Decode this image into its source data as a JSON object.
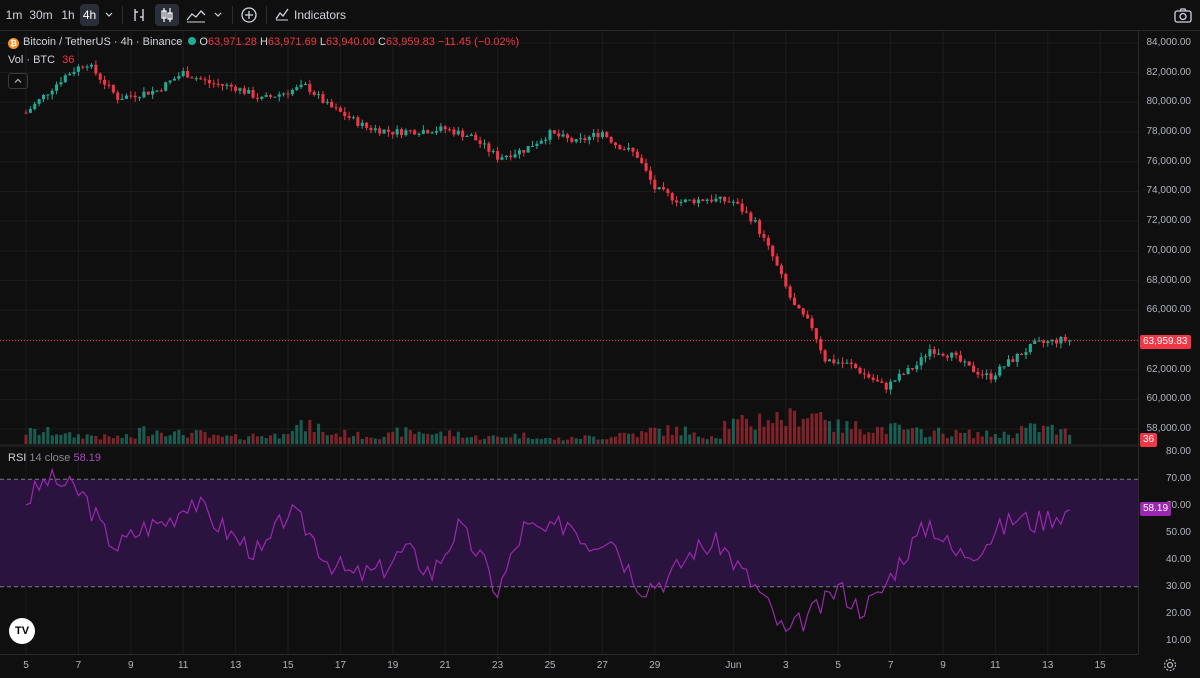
{
  "toolbar": {
    "intervals": [
      "1m",
      "30m",
      "1h",
      "4h"
    ],
    "active_interval": "4h",
    "indicators_label": "Indicators"
  },
  "legend": {
    "symbol": "Bitcoin / TetherUS · 4h · Binance",
    "ohlc_open_label": "O",
    "ohlc_open": "63,971.28",
    "ohlc_high_label": "H",
    "ohlc_high": "63,971.69",
    "ohlc_low_label": "L",
    "ohlc_low": "63,940.00",
    "ohlc_close_label": "C",
    "ohlc_close": "63,959.83",
    "change": "−11.45 (−0.02%)",
    "vol_label": "Vol · BTC",
    "vol_value": "36"
  },
  "rsi_legend": {
    "label": "RSI",
    "params": "14 close",
    "value": "58.19"
  },
  "colors": {
    "up": "#22ab94",
    "down": "#f23645",
    "rsi": "#9c27b0",
    "rsi_band": "#2b1340",
    "background": "#0f0f0f"
  },
  "chart_data": {
    "type": "candlestick",
    "price_axis_ticks": [
      "84,000.00",
      "82,000.00",
      "80,000.00",
      "78,000.00",
      "76,000.00",
      "74,000.00",
      "72,000.00",
      "70,000.00",
      "68,000.00",
      "66,000.00",
      "64,000.00",
      "62,000.00",
      "60,000.00",
      "58,000.00"
    ],
    "price_range": [
      57000,
      84800
    ],
    "last_price": "63,959.83",
    "last_volume": "36",
    "rsi_axis_ticks": [
      "80.00",
      "70.00",
      "60.00",
      "50.00",
      "40.00",
      "30.00",
      "20.00",
      "10.00"
    ],
    "rsi_range": [
      5,
      82
    ],
    "rsi_bands": [
      30,
      70
    ],
    "rsi_last": "58.19",
    "time_axis_labels": [
      "5",
      "7",
      "9",
      "11",
      "13",
      "15",
      "17",
      "19",
      "21",
      "23",
      "25",
      "27",
      "29",
      "Jun",
      "3",
      "5",
      "7",
      "9",
      "11",
      "13",
      "15"
    ],
    "time_axis_days": [
      0,
      2,
      4,
      6,
      8,
      10,
      12,
      14,
      16,
      18,
      20,
      22,
      24,
      27,
      29,
      31,
      33,
      35,
      37,
      39,
      41
    ],
    "price_path": [
      [
        0,
        79300
      ],
      [
        1.5,
        81800
      ],
      [
        2.3,
        82700
      ],
      [
        3.5,
        80300
      ],
      [
        5,
        80800
      ],
      [
        6,
        82000
      ],
      [
        7,
        81300
      ],
      [
        8,
        81000
      ],
      [
        9,
        80200
      ],
      [
        10.7,
        81100
      ],
      [
        11.5,
        79800
      ],
      [
        13,
        78300
      ],
      [
        14,
        78000
      ],
      [
        16,
        78200
      ],
      [
        17,
        77700
      ],
      [
        18,
        76300
      ],
      [
        19,
        76800
      ],
      [
        20,
        77900
      ],
      [
        21,
        77300
      ],
      [
        22,
        78000
      ],
      [
        22.5,
        77200
      ],
      [
        23.3,
        76500
      ],
      [
        24,
        74200
      ],
      [
        25,
        73300
      ],
      [
        26,
        73500
      ],
      [
        27,
        73300
      ],
      [
        27.8,
        72000
      ],
      [
        28.5,
        69600
      ],
      [
        29.3,
        66300
      ],
      [
        30,
        64900
      ],
      [
        30.5,
        62700
      ],
      [
        31.5,
        62300
      ],
      [
        32,
        61700
      ],
      [
        32.8,
        60800
      ],
      [
        33.3,
        61500
      ],
      [
        34,
        62300
      ],
      [
        34.5,
        63400
      ],
      [
        35.3,
        63000
      ],
      [
        36,
        62100
      ],
      [
        36.8,
        61500
      ],
      [
        37.5,
        62500
      ],
      [
        38.5,
        63700
      ],
      [
        39.5,
        64000
      ],
      [
        39.9,
        63960
      ]
    ],
    "rsi_path": [
      [
        0,
        62
      ],
      [
        0.8,
        70
      ],
      [
        1.5,
        68
      ],
      [
        2.2,
        64
      ],
      [
        3,
        50
      ],
      [
        3.5,
        45
      ],
      [
        4.5,
        52
      ],
      [
        5.5,
        55
      ],
      [
        6.3,
        63
      ],
      [
        7,
        56
      ],
      [
        8,
        48
      ],
      [
        9,
        42
      ],
      [
        10,
        58
      ],
      [
        10.7,
        52
      ],
      [
        11.5,
        40
      ],
      [
        12.5,
        34
      ],
      [
        13.5,
        36
      ],
      [
        14.5,
        44
      ],
      [
        15.5,
        35
      ],
      [
        16.5,
        52
      ],
      [
        17.3,
        42
      ],
      [
        18,
        28
      ],
      [
        19,
        52
      ],
      [
        20,
        50
      ],
      [
        20.7,
        55
      ],
      [
        21.5,
        46
      ],
      [
        22.3,
        50
      ],
      [
        22.8,
        40
      ],
      [
        23.5,
        30
      ],
      [
        24.5,
        33
      ],
      [
        25.5,
        44
      ],
      [
        26.5,
        46
      ],
      [
        27.3,
        36
      ],
      [
        28,
        28
      ],
      [
        28.5,
        20
      ],
      [
        29,
        12
      ],
      [
        29.7,
        18
      ],
      [
        30.5,
        24
      ],
      [
        31,
        30
      ],
      [
        31.8,
        22
      ],
      [
        32.5,
        26
      ],
      [
        33.5,
        42
      ],
      [
        34.5,
        54
      ],
      [
        35.5,
        42
      ],
      [
        36.3,
        44
      ],
      [
        37,
        50
      ],
      [
        37.8,
        56
      ],
      [
        38.5,
        54
      ],
      [
        39.3,
        57
      ],
      [
        39.8,
        58
      ]
    ],
    "volume_levels": [
      0.35,
      0.25,
      0.2,
      0.4,
      0.3,
      0.2,
      0.25,
      0.5,
      0.3,
      0.25,
      0.35,
      0.3,
      0.2,
      0.25,
      0.15,
      0.2,
      0.3,
      0.4,
      0.25,
      0.6,
      0.75,
      0.9,
      0.5,
      0.45,
      0.35,
      0.3,
      0.28,
      0.45,
      0.35
    ]
  }
}
